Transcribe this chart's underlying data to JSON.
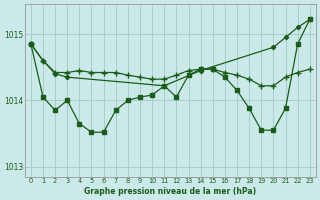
{
  "xlabel": "Graphe pression niveau de la mer (hPa)",
  "background_color": "#cce9e9",
  "grid_color": "#aacccc",
  "line_color": "#1a5c1a",
  "text_color": "#1a5c1a",
  "xlim": [
    -0.5,
    23.5
  ],
  "ylim": [
    1012.85,
    1015.45
  ],
  "yticks": [
    1013,
    1014,
    1015
  ],
  "xticks": [
    0,
    1,
    2,
    3,
    4,
    5,
    6,
    7,
    8,
    9,
    10,
    11,
    12,
    13,
    14,
    15,
    16,
    17,
    18,
    19,
    20,
    21,
    22,
    23
  ],
  "line_trending_x": [
    0,
    1,
    2,
    3,
    11,
    14,
    20,
    21,
    22,
    23
  ],
  "line_trending_y": [
    1014.85,
    1014.6,
    1014.4,
    1014.35,
    1014.22,
    1014.45,
    1014.8,
    1014.95,
    1015.1,
    1015.22
  ],
  "line_flat_x": [
    0,
    1,
    2,
    3,
    4,
    5,
    6,
    7,
    8,
    9,
    10,
    11,
    12,
    13,
    14,
    15,
    16,
    17,
    18,
    19,
    20,
    21,
    22,
    23
  ],
  "line_flat_y": [
    1014.85,
    1014.6,
    1014.42,
    1014.42,
    1014.45,
    1014.42,
    1014.42,
    1014.42,
    1014.38,
    1014.35,
    1014.32,
    1014.32,
    1014.38,
    1014.45,
    1014.47,
    1014.47,
    1014.42,
    1014.38,
    1014.32,
    1014.22,
    1014.22,
    1014.35,
    1014.42,
    1014.47
  ],
  "line_dip_x": [
    0,
    1,
    2,
    3,
    4,
    5,
    6,
    7,
    8,
    9,
    10,
    11,
    12,
    13,
    14,
    15,
    16,
    17,
    18,
    19,
    20,
    21,
    22,
    23
  ],
  "line_dip_y": [
    1014.85,
    1014.05,
    1013.85,
    1014.0,
    1013.65,
    1013.52,
    1013.52,
    1013.85,
    1014.0,
    1014.05,
    1014.08,
    1014.22,
    1014.05,
    1014.38,
    1014.47,
    1014.47,
    1014.35,
    1014.15,
    1013.88,
    1013.55,
    1013.55,
    1013.88,
    1014.85,
    1015.22
  ]
}
